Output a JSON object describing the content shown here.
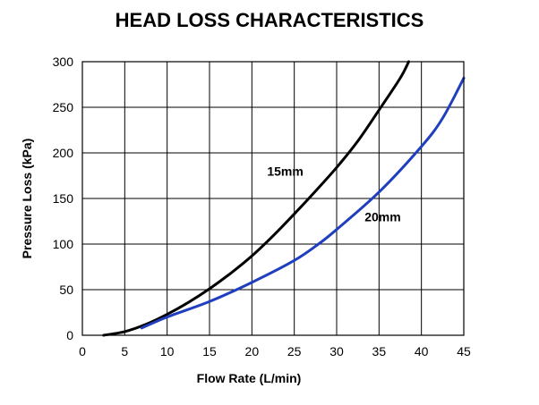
{
  "chart_data": {
    "type": "line",
    "title": "HEAD LOSS CHARACTERISTICS",
    "xlabel": "Flow Rate (L/min)",
    "ylabel": "Pressure Loss (kPa)",
    "xlim": [
      0,
      45
    ],
    "ylim": [
      0,
      300
    ],
    "xticks": [
      0,
      5,
      10,
      15,
      20,
      25,
      30,
      35,
      40,
      45
    ],
    "yticks": [
      0,
      50,
      100,
      150,
      200,
      250,
      300
    ],
    "grid": true,
    "series": [
      {
        "name": "15mm",
        "color": "#000000",
        "x": [
          2.5,
          5,
          7.5,
          10,
          12.5,
          15,
          17.5,
          20,
          22.5,
          25,
          27.5,
          30,
          32.5,
          35,
          37.5,
          38.5
        ],
        "y": [
          0,
          4,
          12,
          23,
          36,
          51,
          68,
          87,
          109,
          133,
          158,
          184,
          213,
          247,
          282,
          300
        ]
      },
      {
        "name": "20mm",
        "color": "#1f3fbf",
        "x": [
          7,
          10,
          15,
          20,
          25,
          28,
          30,
          35,
          40,
          42.5,
          45
        ],
        "y": [
          8,
          20,
          37,
          58,
          82,
          101,
          116,
          157,
          207,
          238,
          282
        ]
      }
    ]
  }
}
